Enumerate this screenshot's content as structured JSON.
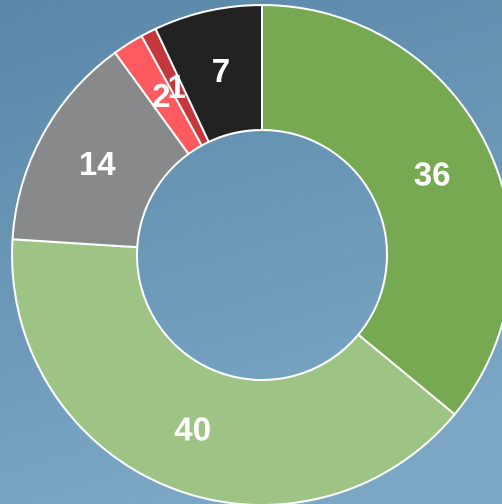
{
  "chart_data": {
    "type": "donut",
    "categories": [
      null,
      null,
      null,
      null,
      null,
      null
    ],
    "values": [
      36,
      40,
      14,
      2,
      1,
      7
    ],
    "colors": [
      "#76a951",
      "#9dc484",
      "#87898b",
      "#ff5a5f",
      "#c4383d",
      "#222222"
    ]
  }
}
